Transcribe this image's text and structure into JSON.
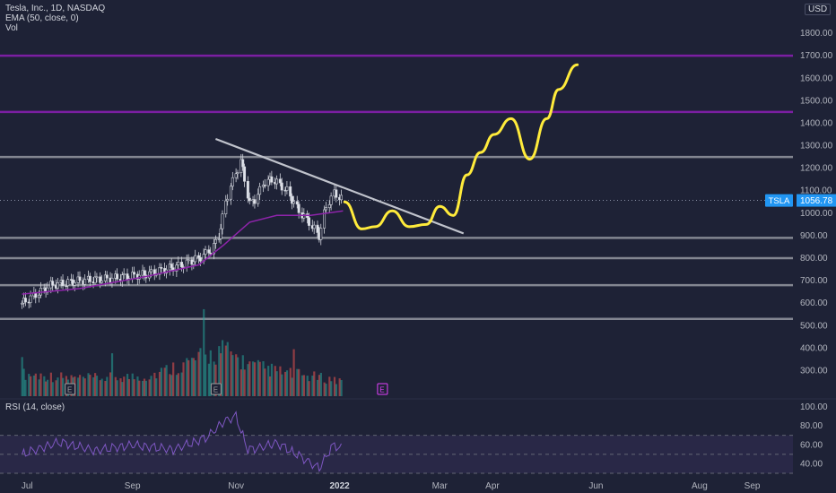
{
  "header": {
    "title": "Tesla, Inc., 1D, NASDAQ",
    "indicator_ema": "EMA (50, close, 0)",
    "indicator_vol": "Vol",
    "currency": "USD"
  },
  "rsi_panel": {
    "label": "RSI (14, close)",
    "ticks": [
      "100.00",
      "80.00",
      "60.00",
      "40.00"
    ],
    "levels": [
      70,
      50,
      30
    ]
  },
  "price_badge": {
    "symbol": "TSLA",
    "value": "1056.78"
  },
  "colors": {
    "background": "#1e2236",
    "up": "#26a69a",
    "down": "#ef5350",
    "ema": "#8e24aa",
    "rsi": "#7e57c2",
    "drawing": "#ffeb3b",
    "support": "#9598a1",
    "purple_level": "#7b1fa2",
    "badge": "#2196f3"
  },
  "chart_data": {
    "type": "line",
    "title": "Tesla, Inc., 1D, NASDAQ",
    "y_axis": {
      "ticks": [
        "1800.00",
        "1700.00",
        "1600.00",
        "1500.00",
        "1400.00",
        "1300.00",
        "1200.00",
        "1100.00",
        "1000.00",
        "900.00",
        "800.00",
        "700.00",
        "600.00",
        "500.00",
        "400.00",
        "300.00"
      ],
      "range": [
        250,
        1900
      ]
    },
    "x_axis": {
      "ticks": [
        "Jul",
        "Sep",
        "Nov",
        "2022",
        "Mar",
        "Apr",
        "Jun",
        "Aug",
        "Sep"
      ],
      "bold": [
        "2022"
      ]
    },
    "series": [
      {
        "name": "TSLA",
        "x": [
          "2021-06-28",
          "2021-07-15",
          "2021-08-01",
          "2021-08-20",
          "2021-09-10",
          "2021-09-30",
          "2021-10-10",
          "2021-10-18",
          "2021-10-22",
          "2021-10-25",
          "2021-10-27",
          "2021-11-01",
          "2021-11-04",
          "2021-11-09",
          "2021-11-12",
          "2021-11-18",
          "2021-11-23",
          "2021-12-01",
          "2021-12-08",
          "2021-12-14",
          "2021-12-20",
          "2021-12-24",
          "2021-12-29",
          "2022-01-03"
        ],
        "values": [
          600,
          680,
          700,
          710,
          730,
          770,
          800,
          840,
          900,
          1020,
          1080,
          1180,
          1230,
          1040,
          1060,
          1140,
          1150,
          1100,
          1010,
          960,
          900,
          1030,
          1090,
          1056.78
        ]
      },
      {
        "name": "EMA (50, close, 0)",
        "x": [
          "2021-06-28",
          "2021-08-01",
          "2021-09-10",
          "2021-10-10",
          "2021-10-25",
          "2021-11-09",
          "2021-11-25",
          "2021-12-15",
          "2022-01-03"
        ],
        "values": [
          640,
          665,
          720,
          770,
          860,
          960,
          990,
          990,
          1010
        ]
      }
    ],
    "horizontal_levels": [
      1700,
      1450,
      1250,
      890,
      800,
      680,
      530
    ],
    "trendline": {
      "from": {
        "x": "2021-10-20",
        "y": 1330
      },
      "to": {
        "x": "2022-03-15",
        "y": 910
      }
    },
    "projection": {
      "x": [
        "2022-01-04",
        "2022-01-14",
        "2022-01-22",
        "2022-02-01",
        "2022-02-11",
        "2022-02-21",
        "2022-03-01",
        "2022-03-09",
        "2022-03-17",
        "2022-03-25",
        "2022-04-02",
        "2022-04-12",
        "2022-04-23",
        "2022-05-03",
        "2022-05-10",
        "2022-05-21"
      ],
      "values": [
        1050,
        930,
        940,
        1010,
        940,
        950,
        1030,
        990,
        1170,
        1270,
        1350,
        1420,
        1240,
        1420,
        1550,
        1660
      ]
    },
    "volume": {
      "x": [
        "2021-06-28",
        "2021-08-01",
        "2021-09-10",
        "2021-10-25",
        "2021-11-09",
        "2021-12-01",
        "2022-01-03"
      ],
      "values": [
        58,
        46,
        52,
        120,
        80,
        60,
        40
      ]
    },
    "rsi": {
      "x": [
        "2021-06-28",
        "2021-07-20",
        "2021-08-10",
        "2021-09-01",
        "2021-09-25",
        "2021-10-15",
        "2021-10-25",
        "2021-11-01",
        "2021-11-08",
        "2021-11-15",
        "2021-11-25",
        "2021-12-05",
        "2021-12-20",
        "2021-12-28",
        "2022-01-03"
      ],
      "values": [
        50,
        63,
        54,
        60,
        55,
        68,
        85,
        90,
        55,
        57,
        62,
        52,
        35,
        60,
        56
      ]
    }
  }
}
